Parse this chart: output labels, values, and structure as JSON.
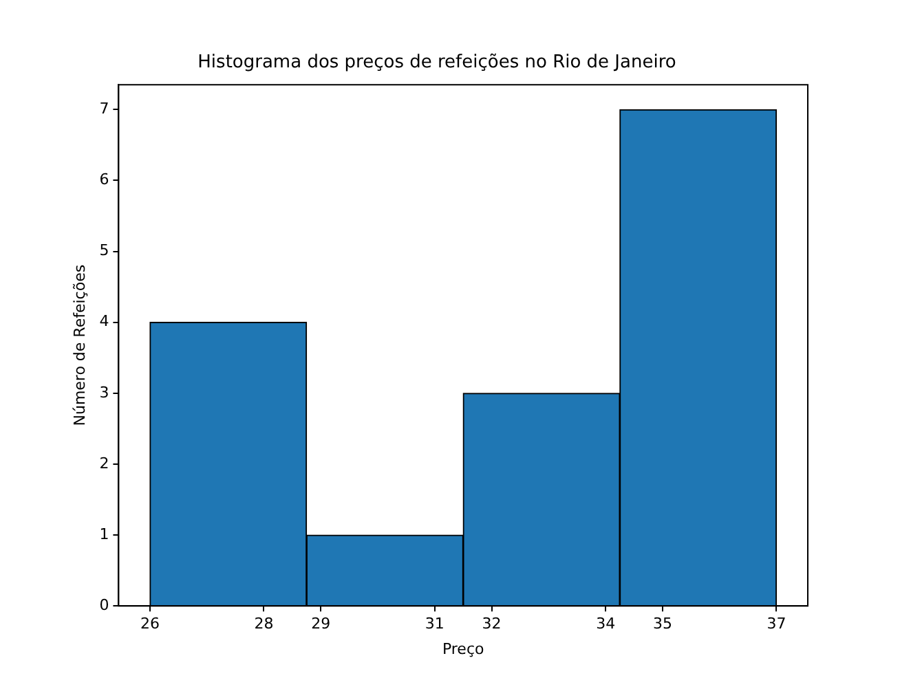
{
  "chart_data": {
    "type": "histogram",
    "title": "Histograma dos preços de refeições no Rio de Janeiro",
    "xlabel": "Preço",
    "ylabel": "Número de Refeições",
    "bins": [
      26,
      28.75,
      31.5,
      34.25,
      37
    ],
    "values": [
      4,
      1,
      3,
      7
    ],
    "color": "#1f77b4",
    "xlim": [
      25.45,
      37.55
    ],
    "xticks": [
      26,
      28,
      29,
      31,
      32,
      34,
      35,
      37
    ],
    "ylim": [
      0,
      7.35
    ],
    "yticks": [
      0,
      1,
      2,
      3,
      4,
      5,
      6,
      7
    ],
    "grid": false,
    "legend": false
  }
}
